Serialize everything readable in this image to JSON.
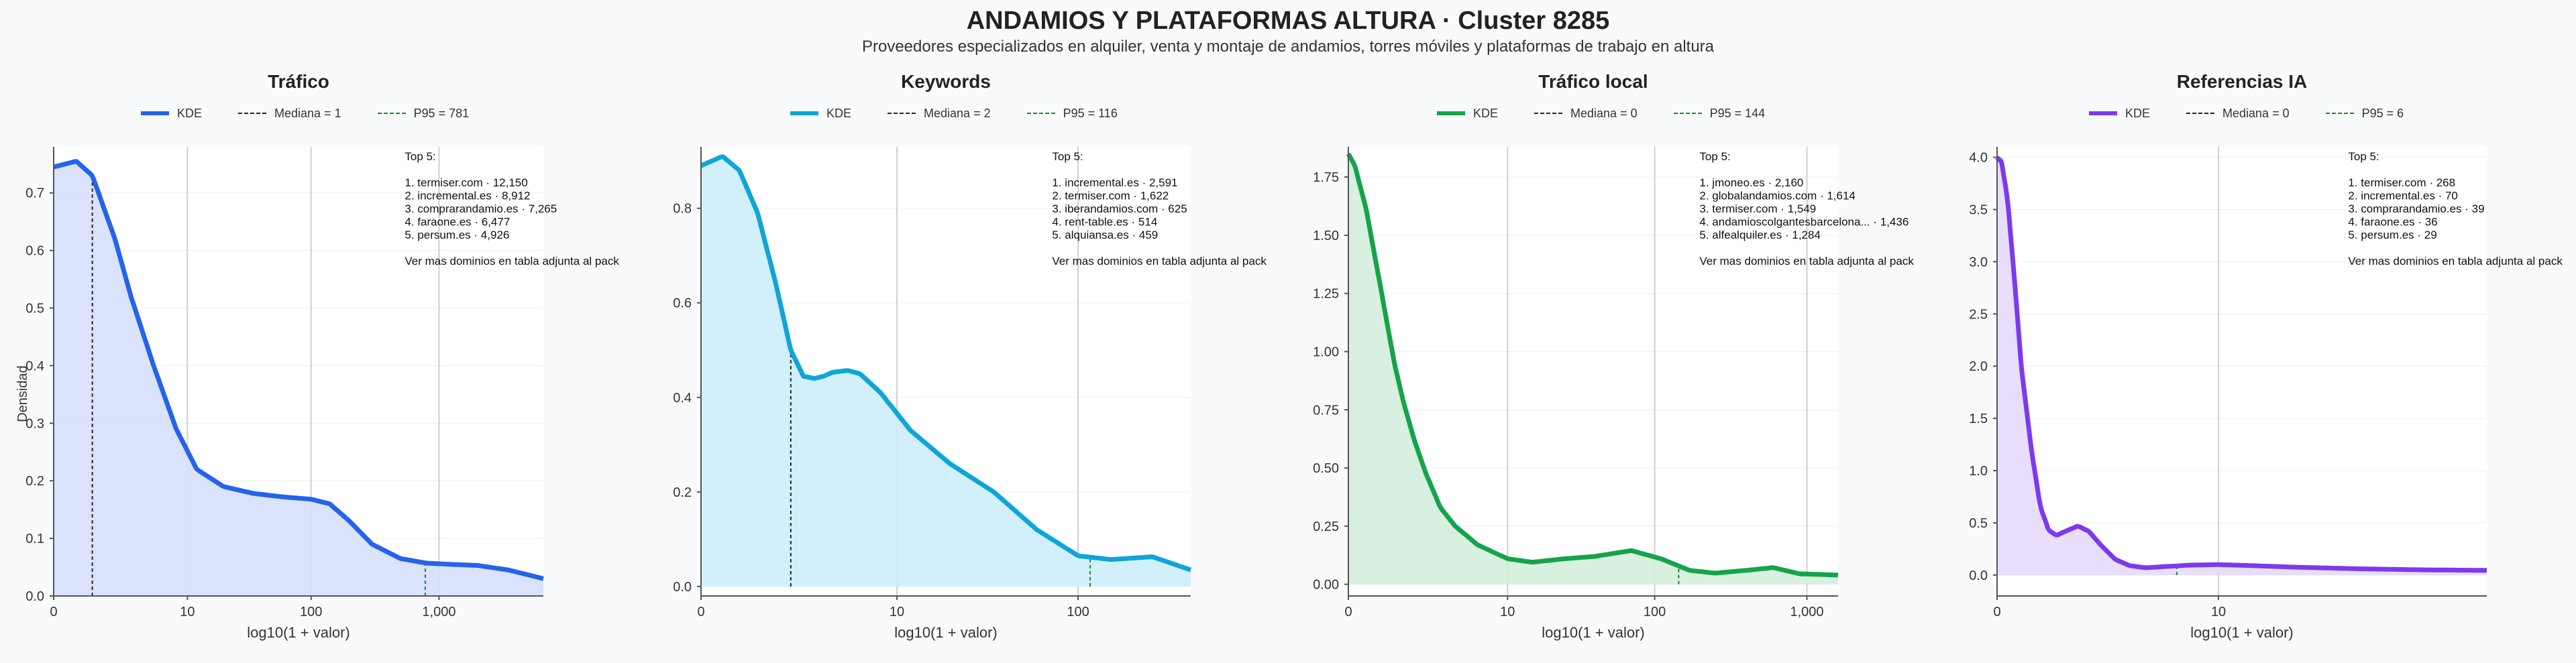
{
  "title": "ANDAMIOS Y PLATAFORMAS ALTURA · Cluster 8285",
  "subtitle": "Proveedores especializados en alquiler, venta y montaje de andamios, torres móviles y plataformas de trabajo en altura",
  "legend_labels": {
    "kde": "KDE"
  },
  "colors": {
    "median_line": "#222222",
    "p95_line": "#1b8a2c",
    "grid": "#cfcfcf",
    "background": "#f8fafc"
  },
  "chart_data": [
    {
      "type": "area",
      "title": "Tráfico",
      "xlabel": "log10(1 + valor)",
      "ylabel": "Densidad",
      "x_scale": "log10(1+x)",
      "xlim": [
        0,
        6500
      ],
      "ylim": [
        0,
        0.78
      ],
      "x_ticks": [
        0,
        10,
        100,
        1000
      ],
      "x_tick_labels": [
        "0",
        "10",
        "100",
        "1,000"
      ],
      "y_ticks": [
        0.0,
        0.1,
        0.2,
        0.3,
        0.4,
        0.5,
        0.6,
        0.7
      ],
      "y_tick_labels": [
        "0.0",
        "0.1",
        "0.2",
        "0.3",
        "0.4",
        "0.5",
        "0.6",
        "0.7"
      ],
      "color": "#2563eb",
      "fill": "#d6e0fb",
      "kde": {
        "x": [
          0,
          0.5,
          1,
          2,
          3,
          5,
          8,
          12,
          20,
          35,
          60,
          100,
          140,
          200,
          300,
          500,
          800,
          1200,
          2000,
          3500,
          6500
        ],
        "y": [
          0.745,
          0.755,
          0.73,
          0.62,
          0.52,
          0.4,
          0.29,
          0.22,
          0.19,
          0.178,
          0.172,
          0.168,
          0.16,
          0.13,
          0.09,
          0.065,
          0.057,
          0.055,
          0.053,
          0.045,
          0.03
        ]
      },
      "median": {
        "value": 1,
        "label": "Mediana = 1"
      },
      "p95": {
        "value": 781,
        "label": "P95 = 781"
      },
      "annotation": {
        "heading": "Top 5:",
        "items": [
          "1. termiser.com · 12,150",
          "2. incremental.es · 8,912",
          "3. comprarandamio.es · 7,265",
          "4. faraone.es · 6,477",
          "5. persum.es · 4,926"
        ],
        "footer": "Ver mas dominios en tabla adjunta al pack"
      }
    },
    {
      "type": "area",
      "title": "Keywords",
      "xlabel": "log10(1 + valor)",
      "x_scale": "log10(1+x)",
      "xlim": [
        0,
        400
      ],
      "ylim": [
        -0.02,
        0.93
      ],
      "x_ticks": [
        0,
        10,
        100
      ],
      "x_tick_labels": [
        "0",
        "10",
        "100"
      ],
      "y_ticks": [
        0.0,
        0.2,
        0.4,
        0.6,
        0.8
      ],
      "y_tick_labels": [
        "0.0",
        "0.2",
        "0.4",
        "0.6",
        "0.8"
      ],
      "color": "#0ea5d9",
      "fill": "#cdeefb",
      "kde": {
        "x": [
          0,
          0.3,
          0.6,
          1,
          1.5,
          2,
          2.5,
          3,
          3.5,
          4,
          5,
          6,
          8,
          12,
          20,
          35,
          60,
          100,
          150,
          250,
          400
        ],
        "y": [
          0.89,
          0.91,
          0.88,
          0.79,
          0.64,
          0.5,
          0.445,
          0.44,
          0.445,
          0.453,
          0.457,
          0.45,
          0.41,
          0.33,
          0.26,
          0.2,
          0.12,
          0.065,
          0.057,
          0.063,
          0.035
        ]
      },
      "median": {
        "value": 2,
        "label": "Mediana = 2"
      },
      "p95": {
        "value": 116,
        "label": "P95 = 116"
      },
      "annotation": {
        "heading": "Top 5:",
        "items": [
          "1. incremental.es · 2,591",
          "2. termiser.com · 1,622",
          "3. iberandamios.com · 625",
          "4. rent-table.es · 514",
          "5. alquiansa.es · 459"
        ],
        "footer": "Ver mas dominios en tabla adjunta al pack"
      }
    },
    {
      "type": "area",
      "title": "Tráfico local",
      "xlabel": "log10(1 + valor)",
      "x_scale": "log10(1+x)",
      "xlim": [
        0,
        1600
      ],
      "ylim": [
        -0.05,
        1.88
      ],
      "x_ticks": [
        0,
        10,
        100,
        1000
      ],
      "x_tick_labels": [
        "0",
        "10",
        "100",
        "1,000"
      ],
      "y_ticks": [
        0.0,
        0.25,
        0.5,
        0.75,
        1.0,
        1.25,
        1.5,
        1.75
      ],
      "y_tick_labels": [
        "0.00",
        "0.25",
        "0.50",
        "0.75",
        "1.00",
        "1.25",
        "1.50",
        "1.75"
      ],
      "color": "#16a34a",
      "fill": "#d3eedb",
      "kde": {
        "x": [
          0,
          0.1,
          0.3,
          0.6,
          1,
          1.3,
          1.7,
          2.2,
          3,
          4,
          6,
          10,
          15,
          25,
          40,
          70,
          110,
          170,
          250,
          400,
          600,
          900,
          1600
        ],
        "y": [
          1.85,
          1.8,
          1.62,
          1.3,
          0.95,
          0.78,
          0.62,
          0.48,
          0.33,
          0.25,
          0.17,
          0.11,
          0.095,
          0.11,
          0.12,
          0.145,
          0.11,
          0.06,
          0.048,
          0.06,
          0.072,
          0.045,
          0.04
        ]
      },
      "median": {
        "value": 0,
        "label": "Mediana = 0"
      },
      "p95": {
        "value": 144,
        "label": "P95 = 144"
      },
      "annotation": {
        "heading": "Top 5:",
        "items": [
          "1. jmoneo.es · 2,160",
          "2. globalandamios.com · 1,614",
          "3. termiser.com · 1,549",
          "4. andamioscolgantesbarcelona... · 1,436",
          "5. alfealquiler.es · 1,284"
        ],
        "footer": "Ver mas dominios en tabla adjunta al pack"
      }
    },
    {
      "type": "area",
      "title": "Referencias IA",
      "xlabel": "log10(1 + valor)",
      "x_scale": "log10(1+x)",
      "xlim": [
        0,
        200
      ],
      "ylim": [
        -0.2,
        4.1
      ],
      "x_ticks": [
        0,
        10
      ],
      "x_tick_labels": [
        "0",
        "10"
      ],
      "y_ticks": [
        0.0,
        0.5,
        1.0,
        1.5,
        2.0,
        2.5,
        3.0,
        3.5,
        4.0
      ],
      "y_tick_labels": [
        "0.0",
        "0.5",
        "1.0",
        "1.5",
        "2.0",
        "2.5",
        "3.0",
        "3.5",
        "4.0"
      ],
      "color": "#7c3aed",
      "fill": "#e6dafb",
      "kde": {
        "x": [
          0,
          0.05,
          0.12,
          0.2,
          0.3,
          0.45,
          0.6,
          0.75,
          0.9,
          1.1,
          1.4,
          1.7,
          2.1,
          2.6,
          3.2,
          4,
          5,
          7,
          10,
          15,
          25,
          50,
          100,
          200
        ],
        "y": [
          4.0,
          3.95,
          3.6,
          2.9,
          2.0,
          1.2,
          0.65,
          0.43,
          0.38,
          0.42,
          0.47,
          0.42,
          0.28,
          0.15,
          0.09,
          0.07,
          0.08,
          0.095,
          0.1,
          0.09,
          0.075,
          0.06,
          0.05,
          0.045
        ]
      },
      "median": {
        "value": 0,
        "label": "Mediana = 0"
      },
      "p95": {
        "value": 6,
        "label": "P95 = 6"
      },
      "annotation": {
        "heading": "Top 5:",
        "items": [
          "1. termiser.com · 268",
          "2. incremental.es · 70",
          "3. comprarandamio.es · 39",
          "4. faraone.es · 36",
          "5. persum.es · 29"
        ],
        "footer": "Ver mas dominios en tabla adjunta al pack"
      }
    }
  ]
}
